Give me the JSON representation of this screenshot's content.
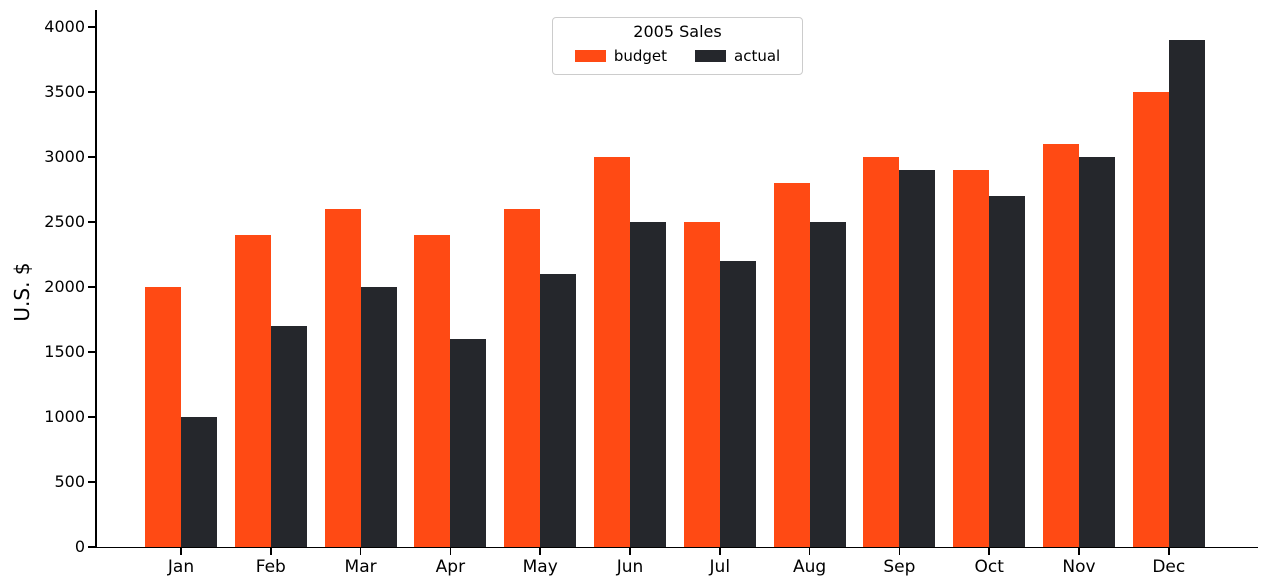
{
  "chart_data": {
    "type": "bar",
    "legend_title": "2005 Sales",
    "categories": [
      "Jan",
      "Feb",
      "Mar",
      "Apr",
      "May",
      "Jun",
      "Jul",
      "Aug",
      "Sep",
      "Oct",
      "Nov",
      "Dec"
    ],
    "series": [
      {
        "name": "budget",
        "color": "#ff4a14",
        "values": [
          2000,
          2400,
          2600,
          2400,
          2600,
          3000,
          2500,
          2800,
          3000,
          2900,
          3100,
          3500
        ]
      },
      {
        "name": "actual",
        "color": "#25272c",
        "values": [
          1000,
          1700,
          2000,
          1600,
          2100,
          2500,
          2200,
          2500,
          2900,
          2700,
          3000,
          3900
        ]
      }
    ],
    "xlabel": "",
    "ylabel": "U.S. $",
    "title": "",
    "ylim": [
      0,
      4000
    ],
    "yticks": [
      0,
      500,
      1000,
      1500,
      2000,
      2500,
      3000,
      3500,
      4000
    ],
    "grid": "off",
    "legend_position": "top-center",
    "colors": {
      "budget": "#ff4a14",
      "actual": "#25272c",
      "axis": "#000000",
      "legend_border": "#cccccc"
    }
  }
}
